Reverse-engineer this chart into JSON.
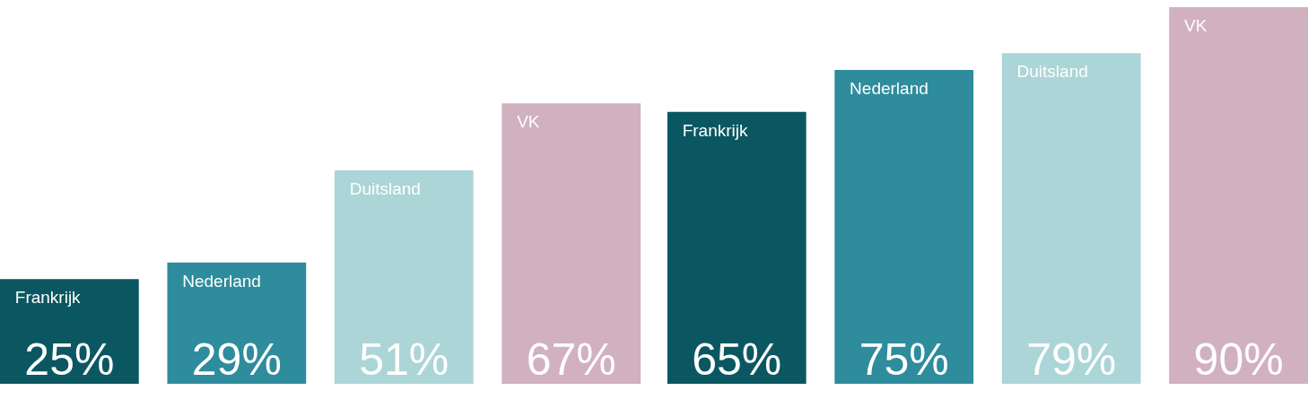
{
  "chart_data": {
    "type": "bar",
    "categories": [
      null,
      null
    ],
    "series": [
      {
        "name": "Frankrijk",
        "color": "#0b5761",
        "values": [
          25,
          65
        ],
        "value_labels": [
          "25%",
          "65%"
        ]
      },
      {
        "name": "Nederland",
        "color": "#2e8c9c",
        "values": [
          29,
          75
        ],
        "value_labels": [
          "29%",
          "75%"
        ]
      },
      {
        "name": "Duitsland",
        "color": "#acd5d7",
        "values": [
          51,
          79
        ],
        "value_labels": [
          "51%",
          "79%"
        ]
      },
      {
        "name": "VK",
        "color": "#d1b0c0",
        "values": [
          67,
          90
        ],
        "value_labels": [
          "67%",
          "90%"
        ]
      }
    ]
  }
}
